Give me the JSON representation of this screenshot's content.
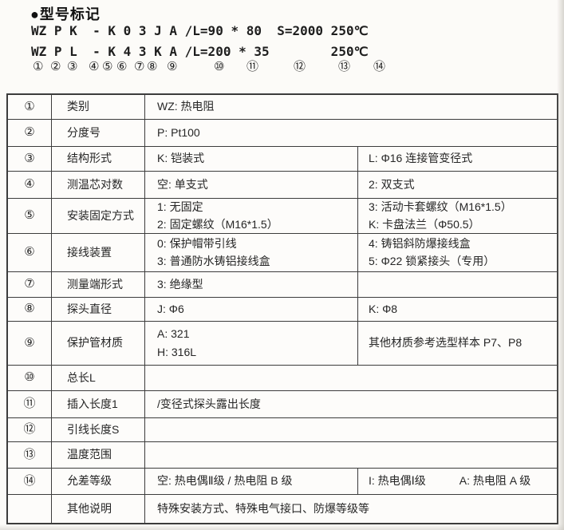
{
  "header": {
    "title": "●型号标记",
    "model_line1": "WZ P K  - K 0 3 J A /L=90 * 80  S=2000 250℃",
    "model_line2": "WZ P L  - K 4 3 K A /L=200 * 35        250℃",
    "circles": [
      "①",
      "②",
      "③",
      "④",
      "⑤",
      "⑥",
      "⑦",
      "⑧",
      "⑨",
      "⑩",
      "⑪",
      "⑫",
      "⑬",
      "⑭"
    ]
  },
  "table": {
    "rows": [
      {
        "num": "①",
        "label": "类别",
        "cells": [
          {
            "span": 2,
            "lines": [
              "WZ: 热电阻"
            ]
          }
        ]
      },
      {
        "num": "②",
        "label": "分度号",
        "cells": [
          {
            "span": 2,
            "lines": [
              "P: Pt100"
            ]
          }
        ]
      },
      {
        "num": "③",
        "label": "结构形式",
        "cells": [
          {
            "span": 1,
            "lines": [
              "K: 铠装式"
            ]
          },
          {
            "span": 1,
            "lines": [
              "L: Φ16 连接管变径式"
            ]
          }
        ]
      },
      {
        "num": "④",
        "label": "测温芯对数",
        "cells": [
          {
            "span": 1,
            "lines": [
              "空: 单支式"
            ]
          },
          {
            "span": 1,
            "lines": [
              "2: 双支式"
            ]
          }
        ]
      },
      {
        "num": "⑤",
        "label": "安装固定方式",
        "cells": [
          {
            "span": 1,
            "lines": [
              "1: 无固定",
              "2: 固定螺纹（M16*1.5）"
            ]
          },
          {
            "span": 1,
            "lines": [
              "3: 活动卡套螺纹（M16*1.5）",
              "K: 卡盘法兰（Φ50.5）"
            ]
          }
        ]
      },
      {
        "num": "⑥",
        "label": "接线装置",
        "cells": [
          {
            "span": 1,
            "lines": [
              "0: 保护帽带引线",
              "3: 普通防水铸铝接线盒"
            ]
          },
          {
            "span": 1,
            "lines": [
              "4: 铸铝斜防爆接线盒",
              "5: Φ22 锁紧接头（专用）"
            ]
          }
        ]
      },
      {
        "num": "⑦",
        "label": "测量端形式",
        "cells": [
          {
            "span": 1,
            "lines": [
              "3: 绝缘型"
            ]
          },
          {
            "span": 1,
            "lines": [
              ""
            ]
          }
        ]
      },
      {
        "num": "⑧",
        "label": "探头直径",
        "cells": [
          {
            "span": 1,
            "lines": [
              "J: Φ6"
            ]
          },
          {
            "span": 1,
            "lines": [
              "K: Φ8"
            ]
          }
        ]
      },
      {
        "num": "⑨",
        "label": "保护管材质",
        "cells": [
          {
            "span": 1,
            "lines": [
              "A: 321",
              "H: 316L"
            ]
          },
          {
            "span": 1,
            "lines": [
              "其他材质参考选型样本 P7、P8"
            ]
          }
        ]
      },
      {
        "num": "⑩",
        "label": "总长L",
        "cells": [
          {
            "span": 2,
            "lines": [
              ""
            ]
          }
        ]
      },
      {
        "num": "⑪",
        "label": "插入长度1",
        "cells": [
          {
            "span": 2,
            "lines": [
              "/变径式探头露出长度"
            ]
          }
        ]
      },
      {
        "num": "⑫",
        "label": "引线长度S",
        "cells": [
          {
            "span": 2,
            "lines": [
              ""
            ]
          }
        ]
      },
      {
        "num": "⑬",
        "label": "温度范围",
        "cells": [
          {
            "span": 2,
            "lines": [
              ""
            ]
          }
        ]
      },
      {
        "num": "⑭",
        "label": "允差等级",
        "cells": [
          {
            "span": 1,
            "lines": [
              "空: 热电偶Ⅱ级 / 热电阻 B 级"
            ]
          },
          {
            "span": 1,
            "lines": [
              "I: 热电偶Ⅰ级　　　A: 热电阻 A 级"
            ]
          }
        ]
      },
      {
        "num": "",
        "label": "其他说明",
        "cells": [
          {
            "span": 2,
            "lines": [
              "特殊安装方式、特殊电气接口、防爆等级等"
            ]
          }
        ]
      }
    ]
  }
}
